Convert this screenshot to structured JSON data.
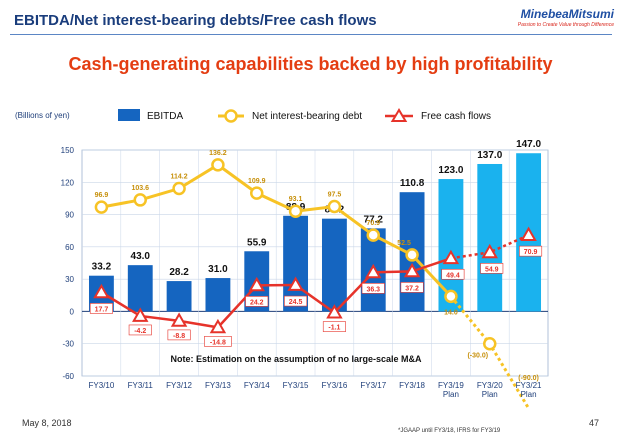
{
  "header": {
    "title": "EBITDA/Net interest-bearing debts/Free cash flows",
    "brand": "MinebeaMitsumi",
    "brand_tagline": "Passion to Create Value through Difference",
    "rule_color": "#5b86c5"
  },
  "subtitle": "Cash-generating capabilities backed by high profitability",
  "footer": {
    "date": "May 8, 2018",
    "page": "47",
    "footnote": "*JGAAP until FY3/18, IFRS for FY3/19"
  },
  "chart_data": {
    "type": "bar",
    "unit_label": "(Billions of yen)",
    "note": "Note: Estimation on the assumption of no large-scale M&A",
    "categories": [
      [
        "FY3/10"
      ],
      [
        "FY3/11"
      ],
      [
        "FY3/12"
      ],
      [
        "FY3/13"
      ],
      [
        "FY3/14"
      ],
      [
        "FY3/15"
      ],
      [
        "FY3/16"
      ],
      [
        "FY3/17"
      ],
      [
        "FY3/18"
      ],
      [
        "FY3/19",
        "Plan"
      ],
      [
        "FY3/20",
        "Plan"
      ],
      [
        "FY3/21",
        "Plan"
      ]
    ],
    "ylim": [
      -60,
      150
    ],
    "yticks": [
      -60,
      -30,
      0,
      30,
      60,
      90,
      120,
      150
    ],
    "grid": true,
    "legend_position": "top",
    "colors": {
      "ebitda_actual": "#1565c0",
      "ebitda_plan": "#1ab2ee",
      "debt": "#f7c325",
      "debt_label": "#c7900b",
      "fcf": "#e6332a",
      "grid": "#c9d6e8"
    },
    "series": [
      {
        "name": "EBITDA",
        "kind": "bar",
        "values": [
          33.2,
          43.0,
          28.2,
          31.0,
          55.9,
          88.9,
          86.2,
          77.2,
          110.8,
          123.0,
          137.0,
          147.0
        ],
        "labels": [
          "33.2",
          "43.0",
          "28.2",
          "31.0",
          "55.9",
          "88.9",
          "86.2",
          "77.2",
          "110.8",
          "123.0",
          "137.0",
          "147.0"
        ]
      },
      {
        "name": "Net interest-bearing debt",
        "kind": "line",
        "values": [
          96.9,
          103.6,
          114.2,
          136.2,
          109.9,
          93.1,
          97.5,
          70.9,
          52.5,
          14.0,
          -30.0,
          -90.0
        ],
        "labels": [
          "96.9",
          "103.6",
          "114.2",
          "136.2",
          "109.9",
          "93.1",
          "97.5",
          "70.9",
          "52.5",
          "14.0",
          "(-30.0)",
          "(-90.0)"
        ]
      },
      {
        "name": "Free cash flows",
        "kind": "line",
        "values": [
          17.7,
          -4.2,
          -8.8,
          -14.8,
          24.2,
          24.5,
          -1.1,
          36.3,
          37.2,
          49.4,
          54.9,
          70.9
        ],
        "labels": [
          "17.7",
          "-4.2",
          "-8.8",
          "-14.8",
          "24.2",
          "24.5",
          "-1.1",
          "36.3",
          "37.2",
          "49.4",
          "54.9",
          "70.9"
        ]
      }
    ]
  }
}
